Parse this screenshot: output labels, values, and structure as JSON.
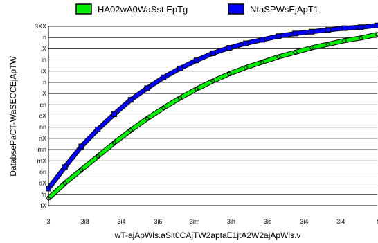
{
  "chart_data": {
    "type": "line",
    "title": "",
    "xlabel": "wT-ajApWls.aSlt0CAjTW2aptaE1jtA2W2ajApWls.v",
    "ylabel": "DatabsePaCT-WaSECCEjApTW",
    "x_tick_labels": [
      "3",
      "3i8",
      "3i4",
      "3i6",
      "3im",
      "3ih",
      "3ic",
      "3i4",
      "3i4",
      "f"
    ],
    "y_tick_labels": [
      "fX",
      "fn",
      "oX",
      "on",
      "mX",
      "mn",
      "nX",
      "nn",
      "cX",
      "cn",
      "X",
      "n",
      "iX",
      "in",
      ".X",
      ".n",
      "3XX"
    ],
    "xlim": [
      0,
      1
    ],
    "ylim": [
      80,
      100
    ],
    "grid": "horizontal",
    "legend_position": "top",
    "series": [
      {
        "name": "HA02wA0WaSst EpTg",
        "color": "#00ee00",
        "marker": "diamond",
        "x": [
          0,
          0.05,
          0.1,
          0.15,
          0.2,
          0.25,
          0.3,
          0.35,
          0.4,
          0.45,
          0.5,
          0.55,
          0.6,
          0.65,
          0.7,
          0.75,
          0.8,
          0.85,
          0.9,
          0.95,
          1.0
        ],
        "values": [
          80.8,
          82.5,
          84.0,
          85.5,
          87.0,
          88.4,
          89.7,
          90.9,
          92.0,
          93.0,
          93.9,
          94.7,
          95.4,
          96.0,
          96.6,
          97.1,
          97.6,
          98.0,
          98.4,
          98.7,
          99.1
        ]
      },
      {
        "name": "NtaSPWsEjApT1",
        "color": "#0000ff",
        "marker": "square",
        "x": [
          0,
          0.05,
          0.1,
          0.15,
          0.2,
          0.25,
          0.3,
          0.35,
          0.4,
          0.45,
          0.5,
          0.55,
          0.6,
          0.65,
          0.7,
          0.75,
          0.8,
          0.85,
          0.9,
          0.95,
          1.0
        ],
        "values": [
          81.9,
          84.3,
          86.6,
          88.5,
          90.2,
          91.8,
          93.1,
          94.3,
          95.3,
          96.2,
          97.0,
          97.6,
          98.1,
          98.5,
          98.9,
          99.2,
          99.4,
          99.6,
          99.8,
          99.9,
          100.1
        ]
      }
    ]
  }
}
